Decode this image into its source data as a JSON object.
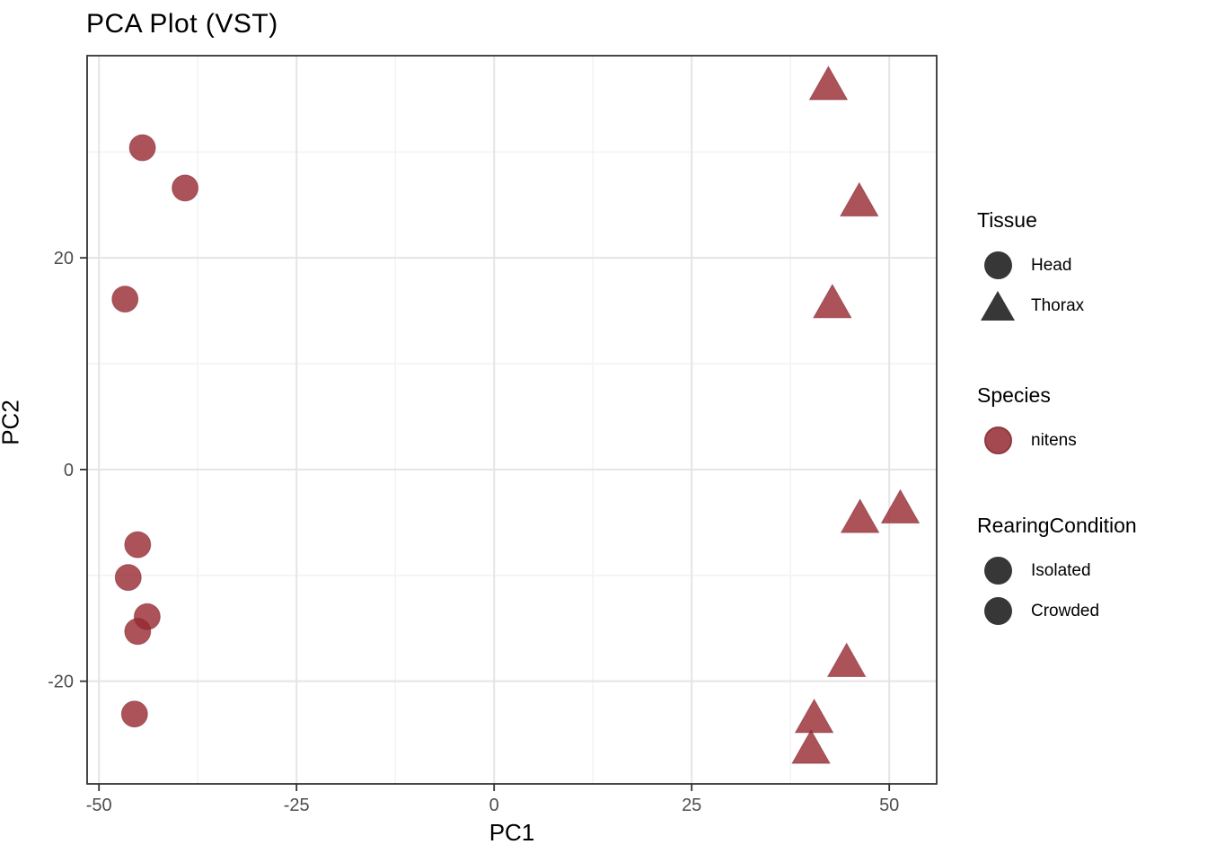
{
  "title": "PCA Plot (VST)",
  "chart_data": {
    "type": "scatter",
    "title": "PCA Plot (VST)",
    "xlabel": "PC1",
    "ylabel": "PC2",
    "xlim": [
      -51.5,
      56.0
    ],
    "ylim": [
      -29.7,
      39.1
    ],
    "x_ticks": [
      -50,
      -25,
      0,
      25,
      50
    ],
    "x_tick_labels": [
      "-50",
      "-25",
      "0",
      "25",
      "50"
    ],
    "y_ticks": [
      20,
      0,
      -20
    ],
    "y_tick_labels": [
      "20",
      "0",
      "-20"
    ],
    "x_minor_gridlines": [
      -37.5,
      -12.5,
      12.5,
      37.5
    ],
    "y_minor_gridlines": [
      30,
      10,
      -10
    ],
    "grid": "on",
    "legend_position": "right",
    "series": [
      {
        "name": "Head",
        "shape": "circle",
        "species": "nitens",
        "points": [
          [
            -44.5,
            30.4
          ],
          [
            -39.1,
            26.6
          ],
          [
            -46.7,
            16.1
          ],
          [
            -45.1,
            -7.1
          ],
          [
            -46.3,
            -10.2
          ],
          [
            -43.9,
            -13.9
          ],
          [
            -45.1,
            -15.3
          ],
          [
            -45.5,
            -23.1
          ]
        ]
      },
      {
        "name": "Thorax",
        "shape": "triangle",
        "species": "nitens",
        "points": [
          [
            42.3,
            36.3
          ],
          [
            46.2,
            25.3
          ],
          [
            42.8,
            15.7
          ],
          [
            46.3,
            -4.6
          ],
          [
            51.4,
            -3.7
          ],
          [
            44.6,
            -18.2
          ],
          [
            40.5,
            -23.5
          ],
          [
            40.1,
            -26.4
          ]
        ]
      }
    ]
  },
  "legend": {
    "groups": [
      {
        "title": "Tissue",
        "items": [
          {
            "label": "Head",
            "marker": "circle",
            "color": "#373737"
          },
          {
            "label": "Thorax",
            "marker": "triangle",
            "color": "#373737"
          }
        ]
      },
      {
        "title": "Species",
        "items": [
          {
            "label": "nitens",
            "marker": "circle",
            "color": "#A4494F"
          }
        ]
      },
      {
        "title": "RearingCondition",
        "items": [
          {
            "label": "Isolated",
            "marker": "circle",
            "color": "#373737"
          },
          {
            "label": "Crowded",
            "marker": "circle",
            "color": "#373737"
          }
        ]
      }
    ]
  },
  "colors": {
    "point_fill": "rgba(150,40,48,0.8)",
    "point_stroke": "rgba(120,25,35,0.45)",
    "legend_red": "#A4494F",
    "legend_red_border": "#8E3A41",
    "legend_dark": "#373737",
    "grid_major": "#E4E4E4",
    "grid_minor": "#F3F3F3",
    "panel_border": "#333333",
    "tick_mark": "#333333",
    "tick_label": "#4D4D4D",
    "text": "#000000"
  }
}
